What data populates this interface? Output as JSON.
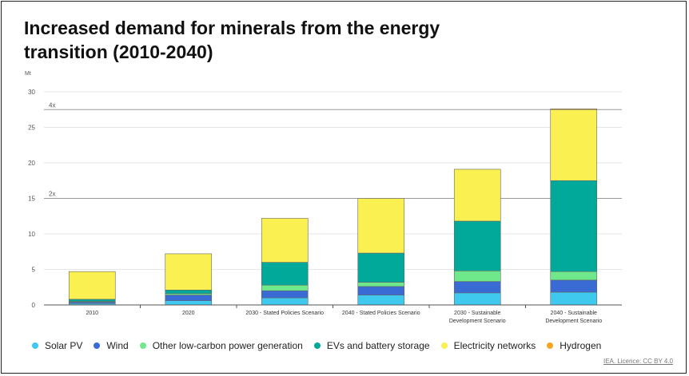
{
  "chart_data": {
    "type": "bar",
    "stacked": true,
    "title": "Increased demand for minerals from the energy transition (2010-2040)",
    "ylabel": "Mt",
    "ylim": [
      0,
      30
    ],
    "yticks": [
      0,
      5,
      10,
      15,
      20,
      25,
      30
    ],
    "grid": true,
    "legend_position": "bottom",
    "categories": [
      "2010",
      "2020",
      "2030 - Stated Policies Scenario",
      "2040 - Stated Policies Scenario",
      "2030 - Sustainable Development Scenario",
      "2040 - Sustainable Development Scenario"
    ],
    "category_lines": [
      [
        "2010"
      ],
      [
        "2020"
      ],
      [
        "2030 - Stated Policies Scenario"
      ],
      [
        "2040 - Stated Policies Scenario"
      ],
      [
        "2030 - Sustainable",
        "Development Scenario"
      ],
      [
        "2040 - Sustainable",
        "Development Scenario"
      ]
    ],
    "series": [
      {
        "name": "Solar PV",
        "color": "#3fc9ee",
        "values": [
          0.2,
          0.6,
          1.0,
          1.4,
          1.7,
          1.8
        ]
      },
      {
        "name": "Wind",
        "color": "#3a6ad4",
        "values": [
          0.2,
          0.8,
          1.0,
          1.2,
          1.6,
          1.7
        ]
      },
      {
        "name": "Other low-carbon power generation",
        "color": "#6ee88a",
        "values": [
          0.1,
          0.2,
          0.8,
          0.6,
          1.5,
          1.2
        ]
      },
      {
        "name": "EVs and battery storage",
        "color": "#00a99a",
        "values": [
          0.3,
          0.5,
          3.2,
          4.1,
          7.0,
          12.8
        ]
      },
      {
        "name": "Electricity networks",
        "color": "#fbf052",
        "values": [
          3.9,
          5.1,
          6.2,
          7.7,
          7.3,
          10.0
        ]
      },
      {
        "name": "Hydrogen",
        "color": "#f5a623",
        "values": [
          0,
          0,
          0,
          0,
          0,
          0.1
        ]
      }
    ],
    "reference_lines": [
      {
        "label": "4x",
        "value": 27.5
      },
      {
        "label": "2x",
        "value": 15.0
      }
    ]
  },
  "credit": "IEA. Licence: CC BY 4.0"
}
